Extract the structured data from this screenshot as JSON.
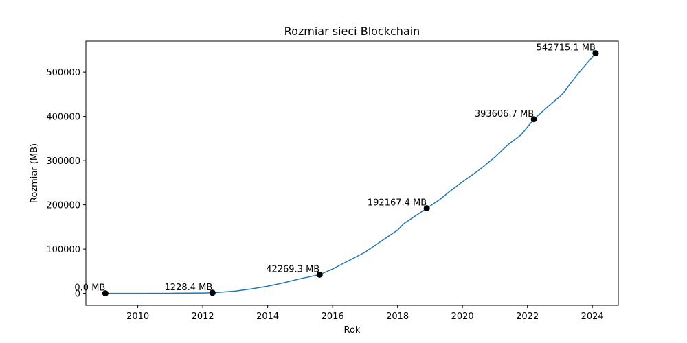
{
  "chart_data": {
    "type": "line",
    "title": "Rozmiar sieci Blockchain",
    "xlabel": "Rok",
    "ylabel": "Rozmiar (MB)",
    "xlim": [
      2008.4,
      2024.8
    ],
    "ylim": [
      -27000,
      570000
    ],
    "xticks": [
      2010,
      2012,
      2014,
      2016,
      2018,
      2020,
      2022,
      2024
    ],
    "yticks": [
      0,
      100000,
      200000,
      300000,
      400000,
      500000
    ],
    "grid": false,
    "legend": "none",
    "line_color": "#1f77b4",
    "marker_color": "#000000",
    "series": [
      {
        "x": [
          2009.0,
          2010.0,
          2011.0,
          2012.0,
          2012.3,
          2013.0,
          2013.5,
          2014.0,
          2014.5,
          2015.0,
          2015.6,
          2016.0,
          2016.5,
          2017.0,
          2017.5,
          2018.0,
          2018.2,
          2018.9,
          2019.3,
          2019.6,
          2020.0,
          2020.5,
          2021.0,
          2021.4,
          2021.8,
          2022.2,
          2022.6,
          2023.0,
          2023.1,
          2023.3,
          2023.6,
          2024.1
        ],
        "y": [
          0,
          0,
          200,
          700,
          1228.4,
          5000,
          10000,
          16000,
          24000,
          33000,
          42269.3,
          55000,
          74000,
          93000,
          118000,
          143000,
          158000,
          192167.4,
          212000,
          230000,
          252000,
          278000,
          308000,
          336000,
          358000,
          393606.7,
          420000,
          445000,
          452000,
          472000,
          500000,
          542715.1
        ]
      }
    ],
    "points": [
      {
        "x": 2009.0,
        "y": 0.0,
        "label": "0.0 MB"
      },
      {
        "x": 2012.3,
        "y": 1228.4,
        "label": "1228.4 MB"
      },
      {
        "x": 2015.6,
        "y": 42269.3,
        "label": "42269.3 MB"
      },
      {
        "x": 2018.9,
        "y": 192167.4,
        "label": "192167.4 MB"
      },
      {
        "x": 2022.2,
        "y": 393606.7,
        "label": "393606.7 MB"
      },
      {
        "x": 2024.1,
        "y": 542715.1,
        "label": "542715.1 MB"
      }
    ]
  }
}
